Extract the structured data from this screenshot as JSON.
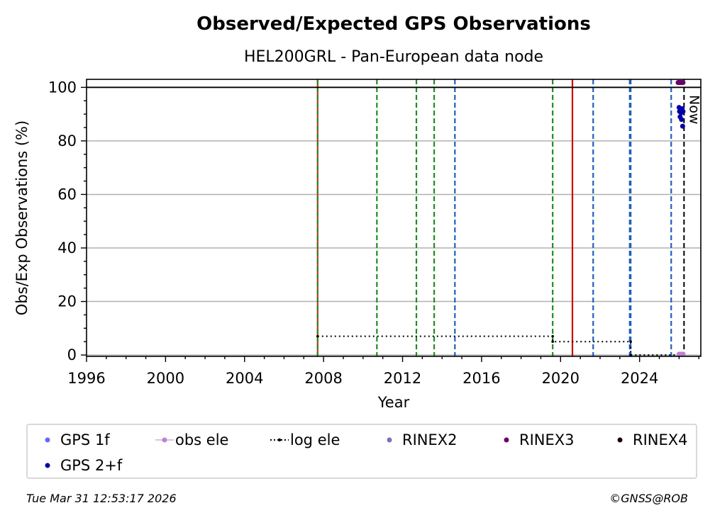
{
  "chart_data": {
    "type": "scatter",
    "title": "Observed/Expected GPS Observations",
    "subtitle": "HEL200GRL - Pan-European data node",
    "xlabel": "Year",
    "ylabel": "Obs/Exp Observations (%)",
    "xlim": [
      1996,
      2027.1
    ],
    "ylim": [
      -0.5,
      103
    ],
    "xticks": [
      1996,
      2000,
      2004,
      2008,
      2012,
      2016,
      2020,
      2024
    ],
    "yticks": [
      0,
      20,
      40,
      60,
      80,
      100
    ],
    "grid": "y",
    "reference_line": 100,
    "now_label": "Now",
    "now_x": 2026.25,
    "vertical_lines": [
      {
        "x": 2007.7,
        "color": "#d62728",
        "style": "solid"
      },
      {
        "x": 2007.7,
        "color": "#228b22",
        "style": "dashed"
      },
      {
        "x": 2010.7,
        "color": "#228b22",
        "style": "dashed"
      },
      {
        "x": 2012.7,
        "color": "#228b22",
        "style": "dashed"
      },
      {
        "x": 2013.6,
        "color": "#228b22",
        "style": "dashed"
      },
      {
        "x": 2014.65,
        "color": "#1f5fbf",
        "style": "dashed"
      },
      {
        "x": 2019.6,
        "color": "#228b22",
        "style": "dashed"
      },
      {
        "x": 2020.6,
        "color": "#cc0000",
        "style": "solid"
      },
      {
        "x": 2021.65,
        "color": "#1f5fbf",
        "style": "dashed"
      },
      {
        "x": 2023.5,
        "color": "#1f5fbf",
        "style": "dashed"
      },
      {
        "x": 2023.55,
        "color": "#1f5fbf",
        "style": "dashed"
      },
      {
        "x": 2025.6,
        "color": "#1f5fbf",
        "style": "dashed"
      }
    ],
    "log_ele": [
      [
        2007.7,
        7
      ],
      [
        2019.6,
        7
      ],
      [
        2019.6,
        5
      ],
      [
        2023.55,
        5
      ],
      [
        2023.55,
        0
      ],
      [
        2026.15,
        0
      ]
    ],
    "series": [
      {
        "name": "GPS 1f",
        "color": "#6666ff",
        "points": []
      },
      {
        "name": "GPS 2+f",
        "color": "#0000aa",
        "points": [
          [
            2026.0,
            92.5
          ],
          [
            2026.02,
            91
          ],
          [
            2026.05,
            89
          ],
          [
            2026.08,
            92
          ],
          [
            2026.1,
            90.5
          ],
          [
            2026.12,
            88
          ],
          [
            2026.15,
            92
          ],
          [
            2026.18,
            85.5
          ],
          [
            2026.2,
            91
          ]
        ]
      },
      {
        "name": "RINEX2",
        "color": "#7f6fb8",
        "points": []
      },
      {
        "name": "RINEX3",
        "color": "#6a006a",
        "points": [
          [
            2025.95,
            101.8
          ],
          [
            2026.0,
            101.8
          ],
          [
            2026.05,
            101.8
          ],
          [
            2026.1,
            101.8
          ],
          [
            2026.15,
            101.8
          ],
          [
            2026.2,
            101.8
          ]
        ]
      },
      {
        "name": "RINEX4",
        "color": "#1a0010",
        "points": []
      },
      {
        "name": "obs ele",
        "color": "#c080d0",
        "points": [
          [
            2026.0,
            0.3
          ],
          [
            2026.05,
            0.3
          ],
          [
            2026.1,
            0.3
          ],
          [
            2026.15,
            0.3
          ],
          [
            2026.2,
            0.3
          ]
        ]
      }
    ],
    "legend": {
      "placement": "bottom",
      "items": [
        {
          "label": "GPS 1f",
          "color": "#6666ff",
          "kind": "dot"
        },
        {
          "label": "obs ele",
          "color": "#c080d0",
          "kind": "line-dot"
        },
        {
          "label": "log ele",
          "color": "#000000",
          "kind": "dotted-line"
        },
        {
          "label": "RINEX2",
          "color": "#7f6fb8",
          "kind": "dot"
        },
        {
          "label": "RINEX3",
          "color": "#6a006a",
          "kind": "dot"
        },
        {
          "label": "RINEX4",
          "color": "#1a0010",
          "kind": "dot"
        },
        {
          "label": "GPS 2+f",
          "color": "#0000aa",
          "kind": "dot"
        }
      ]
    }
  },
  "footer": {
    "timestamp": "Tue Mar 31 12:53:17 2026",
    "copyright": "©GNSS@ROB"
  }
}
